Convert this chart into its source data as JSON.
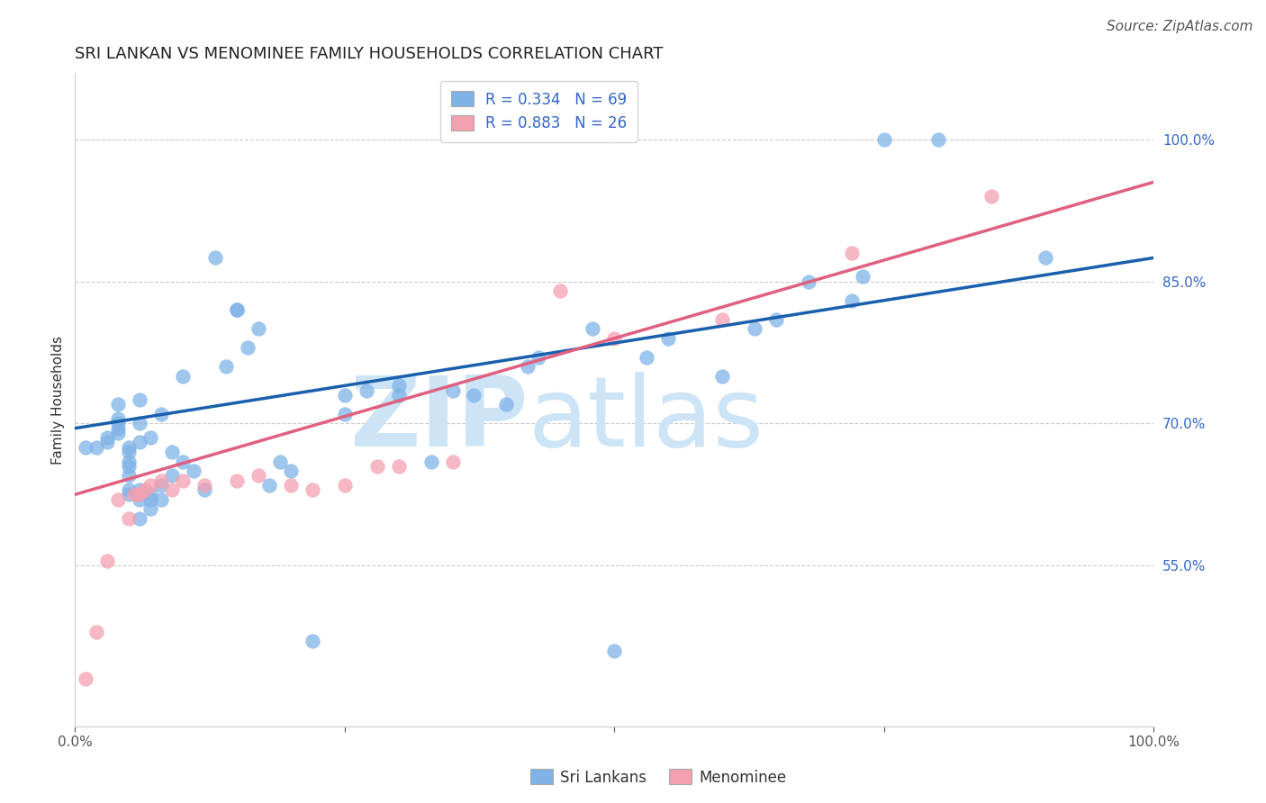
{
  "title": "SRI LANKAN VS MENOMINEE FAMILY HOUSEHOLDS CORRELATION CHART",
  "source": "Source: ZipAtlas.com",
  "ylabel": "Family Households",
  "y_tick_labels": [
    "55.0%",
    "70.0%",
    "85.0%",
    "100.0%"
  ],
  "y_tick_values": [
    0.55,
    0.7,
    0.85,
    1.0
  ],
  "xlim": [
    0.0,
    1.0
  ],
  "ylim": [
    0.38,
    1.07
  ],
  "sri_lankan_color": "#7fb3e8",
  "menominee_color": "#f4a0b0",
  "sri_lankan_line_color": "#1a5fad",
  "menominee_line_color": "#e06080",
  "legend_R_sri": "R = 0.334",
  "legend_N_sri": "N = 69",
  "legend_R_men": "R = 0.883",
  "legend_N_men": "N = 26",
  "legend_label_sri": "Sri Lankans",
  "legend_label_men": "Menominee",
  "watermark": "ZIPatlas",
  "watermark_color": "#cce4f5",
  "sri_x": [
    0.01,
    0.02,
    0.03,
    0.03,
    0.04,
    0.04,
    0.04,
    0.04,
    0.04,
    0.05,
    0.05,
    0.05,
    0.05,
    0.05,
    0.05,
    0.05,
    0.06,
    0.06,
    0.06,
    0.06,
    0.06,
    0.06,
    0.07,
    0.07,
    0.07,
    0.07,
    0.08,
    0.08,
    0.08,
    0.09,
    0.09,
    0.1,
    0.1,
    0.11,
    0.12,
    0.13,
    0.14,
    0.15,
    0.15,
    0.16,
    0.17,
    0.18,
    0.19,
    0.2,
    0.22,
    0.25,
    0.25,
    0.27,
    0.3,
    0.3,
    0.33,
    0.35,
    0.37,
    0.4,
    0.42,
    0.43,
    0.48,
    0.5,
    0.53,
    0.55,
    0.6,
    0.63,
    0.65,
    0.68,
    0.72,
    0.73,
    0.75,
    0.8,
    0.9
  ],
  "sri_y": [
    0.675,
    0.675,
    0.68,
    0.685,
    0.69,
    0.695,
    0.7,
    0.705,
    0.72,
    0.625,
    0.63,
    0.645,
    0.655,
    0.66,
    0.67,
    0.675,
    0.6,
    0.62,
    0.63,
    0.68,
    0.7,
    0.725,
    0.61,
    0.62,
    0.625,
    0.685,
    0.62,
    0.635,
    0.71,
    0.645,
    0.67,
    0.66,
    0.75,
    0.65,
    0.63,
    0.875,
    0.76,
    0.82,
    0.82,
    0.78,
    0.8,
    0.635,
    0.66,
    0.65,
    0.47,
    0.71,
    0.73,
    0.735,
    0.73,
    0.74,
    0.66,
    0.735,
    0.73,
    0.72,
    0.76,
    0.77,
    0.8,
    0.46,
    0.77,
    0.79,
    0.75,
    0.8,
    0.81,
    0.85,
    0.83,
    0.855,
    1.0,
    1.0,
    0.875
  ],
  "men_x": [
    0.01,
    0.02,
    0.03,
    0.04,
    0.05,
    0.055,
    0.06,
    0.065,
    0.07,
    0.08,
    0.09,
    0.1,
    0.12,
    0.15,
    0.17,
    0.2,
    0.22,
    0.25,
    0.28,
    0.3,
    0.35,
    0.45,
    0.5,
    0.6,
    0.72,
    0.85
  ],
  "men_y": [
    0.43,
    0.48,
    0.555,
    0.62,
    0.6,
    0.625,
    0.625,
    0.63,
    0.635,
    0.64,
    0.63,
    0.64,
    0.635,
    0.64,
    0.645,
    0.635,
    0.63,
    0.635,
    0.655,
    0.655,
    0.66,
    0.84,
    0.79,
    0.81,
    0.88,
    0.94
  ],
  "blue_line_x0": 0.0,
  "blue_line_y0": 0.695,
  "blue_line_x1": 1.0,
  "blue_line_y1": 0.875,
  "pink_line_x0": 0.0,
  "pink_line_y0": 0.625,
  "pink_line_x1": 1.0,
  "pink_line_y1": 0.955,
  "title_fontsize": 13,
  "axis_label_fontsize": 11,
  "tick_label_fontsize": 11,
  "legend_fontsize": 12,
  "source_fontsize": 11
}
